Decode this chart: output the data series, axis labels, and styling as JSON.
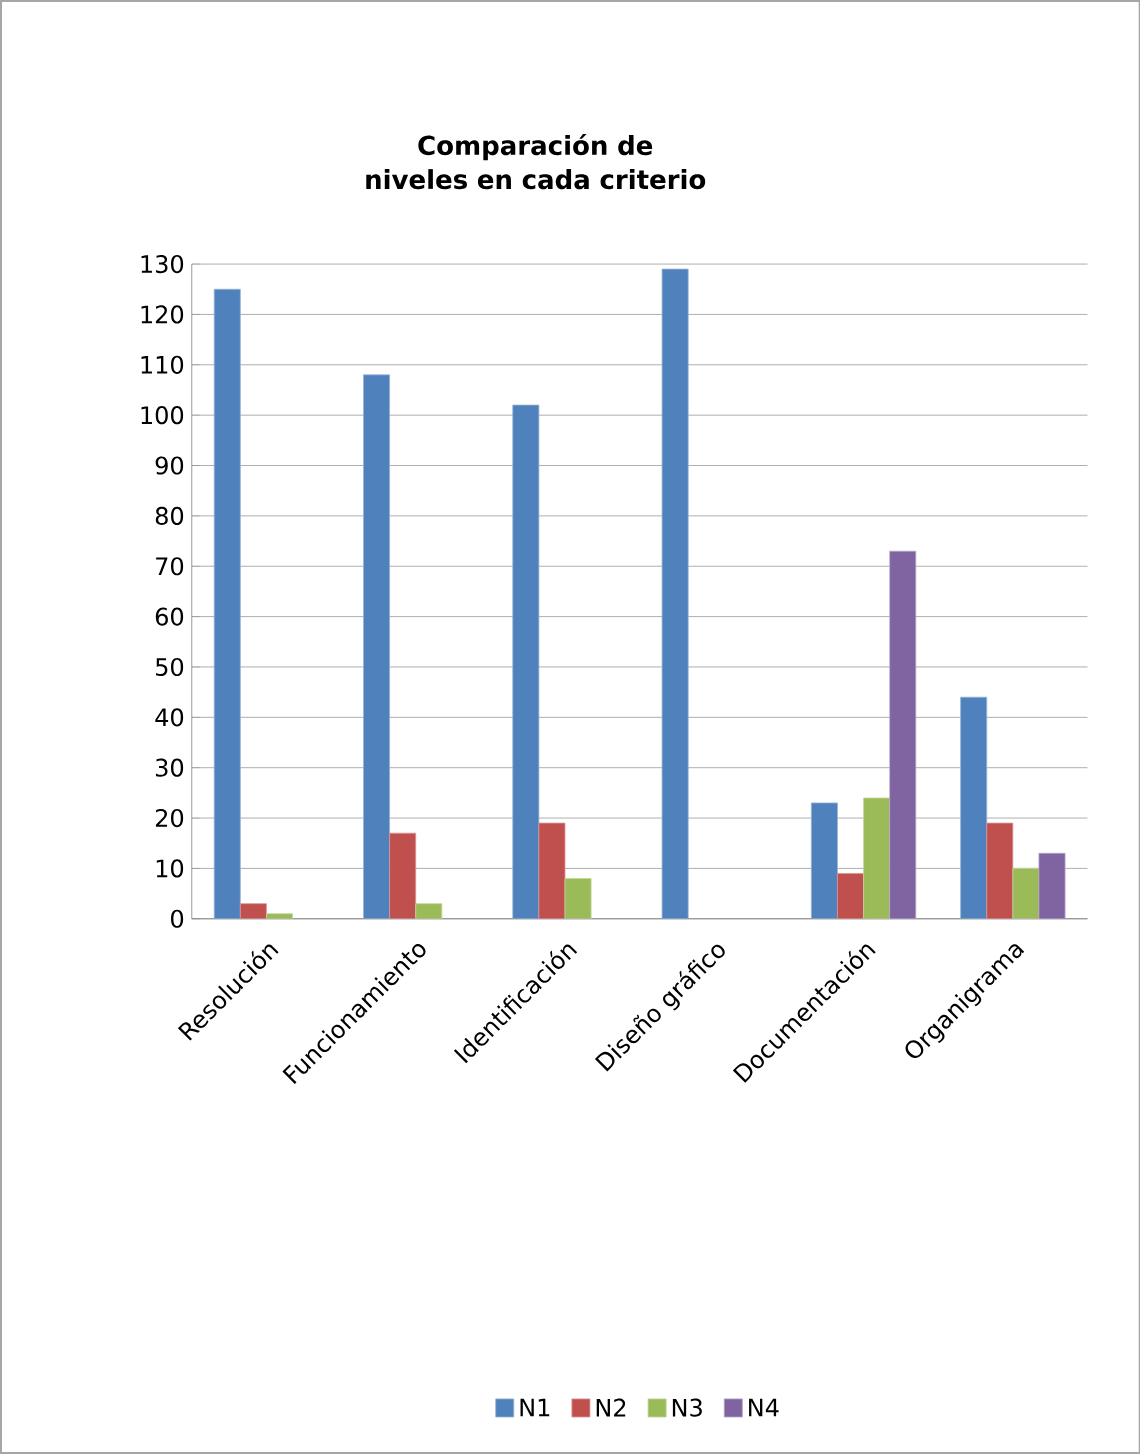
{
  "chart_data": {
    "type": "bar",
    "title": "Comparación de niveles en cada criterio",
    "categories": [
      "Resolución",
      "Funcionamiento",
      "Identificación",
      "Diseño gráfico",
      "Documentación",
      "Organigrama"
    ],
    "series": [
      {
        "name": "N1",
        "color": "#4f81bd",
        "values": [
          125,
          108,
          102,
          129,
          23,
          44
        ]
      },
      {
        "name": "N2",
        "color": "#c0504d",
        "values": [
          3,
          17,
          19,
          null,
          9,
          19
        ]
      },
      {
        "name": "N3",
        "color": "#9bbb59",
        "values": [
          1,
          3,
          8,
          null,
          24,
          10
        ]
      },
      {
        "name": "N4",
        "color": "#8064a2",
        "values": [
          null,
          null,
          null,
          null,
          73,
          13
        ]
      }
    ],
    "ylim": [
      0,
      130
    ],
    "yticks": [
      0,
      10,
      20,
      30,
      40,
      50,
      60,
      70,
      80,
      90,
      100,
      110,
      120,
      130
    ],
    "grid": "y",
    "legend": "bottom"
  }
}
